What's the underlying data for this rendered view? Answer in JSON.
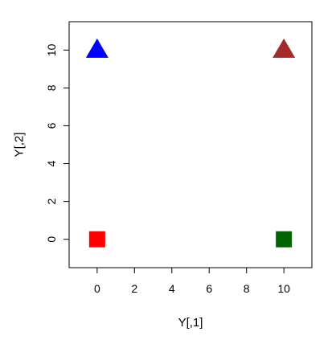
{
  "chart_data": {
    "type": "scatter",
    "title": "",
    "xlabel": "Y[,1]",
    "ylabel": "Y[,2]",
    "xlim": [
      -1.5,
      11.5
    ],
    "ylim": [
      -1.5,
      11.5
    ],
    "x_ticks": [
      0,
      2,
      4,
      6,
      8,
      10
    ],
    "y_ticks": [
      0,
      2,
      4,
      6,
      8,
      10
    ],
    "grid": false,
    "legend": "none",
    "points": [
      {
        "x": 0,
        "y": 0,
        "marker": "square",
        "color": "#ff0000"
      },
      {
        "x": 10,
        "y": 0,
        "marker": "square",
        "color": "#006400"
      },
      {
        "x": 0,
        "y": 10,
        "marker": "triangle",
        "color": "#0000ff"
      },
      {
        "x": 10,
        "y": 10,
        "marker": "triangle",
        "color": "#a52a2a"
      }
    ]
  }
}
